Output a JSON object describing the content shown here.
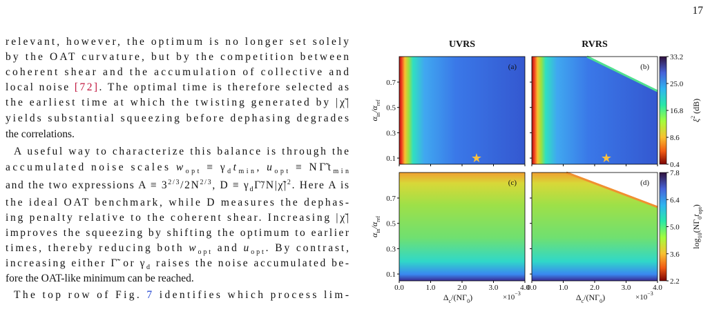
{
  "page_number": "17",
  "body": {
    "lines": [
      [
        "relevant, however, the optimum is no longer set solely"
      ],
      [
        "by the OAT curvature, but by the competition between"
      ],
      [
        "coherent shear and the accumulation of collective and"
      ],
      [
        "local noise ",
        "[72]",
        ". The optimal time is therefore selected as"
      ],
      [
        "the earliest time at which the twisting generated by |χ̃|"
      ],
      [
        "yields substantial squeezing before dephasing degrades"
      ],
      [
        "the correlations."
      ],
      [
        "A useful way to characterize this balance is through the"
      ],
      [
        "accumulated noise scales ",
        "w",
        "opt",
        " ≡ γ",
        "d",
        "t",
        "min",
        ", ",
        "u",
        "opt",
        " ≡ NΓ̃t",
        "min"
      ],
      [
        "and the two expressions A ≡ 3",
        "2/3",
        "/2N",
        "2/3",
        ", D ≡ γ",
        "d",
        "Γ̃/N|χ̃|",
        "2",
        ". Here A is"
      ],
      [
        "the ideal OAT benchmark, while D measures the dephas-"
      ],
      [
        "ing penalty relative to the coherent shear. Increasing |χ̃|"
      ],
      [
        "improves the squeezing by shifting the optimum to earlier"
      ],
      [
        "times, thereby reducing both ",
        "w",
        "opt",
        " and ",
        "u",
        "opt",
        ". By contrast,"
      ],
      [
        "increasing either Γ̃ or γ",
        "d",
        " raises the noise accumulated be-"
      ],
      [
        "fore the OAT-like minimum can be reached."
      ],
      [
        "The top row of Fig. ",
        "7",
        " identifies which process lim-"
      ]
    ]
  },
  "figure": {
    "columns": [
      "UVRS",
      "RVRS"
    ],
    "panels": [
      "(a)",
      "(b)",
      "(c)",
      "(d)"
    ],
    "y_label": [
      "α",
      "in",
      "/α",
      "ref"
    ],
    "y_ticks": [
      "0.7",
      "0.5",
      "0.3",
      "0.1"
    ],
    "x_ticks": [
      "0.0",
      "1.0",
      "2.0",
      "3.0",
      "4.0"
    ],
    "x_exponent": [
      "×10",
      "−3"
    ],
    "x_label": [
      "Δ",
      "c",
      "/(NΓ",
      "0",
      ")"
    ],
    "colorbars": [
      {
        "ticks": [
          "33.2",
          "25.0",
          "16.8",
          "8.6",
          "0.4"
        ],
        "label": [
          "ξ",
          "2",
          " (dB)"
        ]
      },
      {
        "ticks": [
          "7.8",
          "6.4",
          "5.0",
          "3.6",
          "2.2"
        ],
        "label": [
          "log",
          "10",
          "(NΓ",
          "0",
          "t",
          "opt",
          ")"
        ]
      }
    ]
  }
}
